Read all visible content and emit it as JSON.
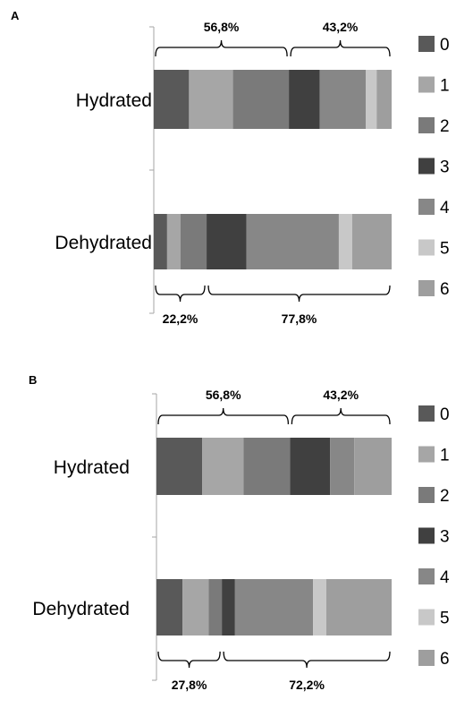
{
  "legend_colors": [
    "#595959",
    "#a6a6a6",
    "#7a7a7a",
    "#404040",
    "#878787",
    "#c8c8c8",
    "#9e9e9e"
  ],
  "chart_data": [
    {
      "panel_label": "A",
      "type": "bar",
      "orientation": "horizontal",
      "stacked": true,
      "normalized": true,
      "categories": [
        "Hydrated",
        "Dehydrated"
      ],
      "series": [
        {
          "name": "0",
          "values": [
            14.8,
            5.6
          ]
        },
        {
          "name": "1",
          "values": [
            18.5,
            5.6
          ]
        },
        {
          "name": "2",
          "values": [
            23.5,
            11.0
          ]
        },
        {
          "name": "3",
          "values": [
            13.0,
            16.7
          ]
        },
        {
          "name": "4",
          "values": [
            19.3,
            38.9
          ]
        },
        {
          "name": "5",
          "values": [
            4.6,
            5.6
          ]
        },
        {
          "name": "6",
          "values": [
            6.3,
            16.6
          ]
        }
      ],
      "annotations": [
        {
          "category": "Hydrated",
          "position": "top",
          "from": 0,
          "to": 56.8,
          "label": "56,8%"
        },
        {
          "category": "Hydrated",
          "position": "top",
          "from": 56.8,
          "to": 100,
          "label": "43,2%"
        },
        {
          "category": "Dehydrated",
          "position": "bottom",
          "from": 0,
          "to": 22.2,
          "label": "22,2%"
        },
        {
          "category": "Dehydrated",
          "position": "bottom",
          "from": 22.2,
          "to": 100,
          "label": "77,8%"
        }
      ],
      "legend": {
        "position": "right",
        "entries": [
          "0",
          "1",
          "2",
          "3",
          "4",
          "5",
          "6"
        ]
      }
    },
    {
      "panel_label": "B",
      "type": "bar",
      "orientation": "horizontal",
      "stacked": true,
      "normalized": true,
      "categories": [
        "Hydrated",
        "Dehydrated"
      ],
      "series": [
        {
          "name": "0",
          "values": [
            19.4,
            11.1
          ]
        },
        {
          "name": "1",
          "values": [
            17.6,
            11.1
          ]
        },
        {
          "name": "2",
          "values": [
            19.8,
            5.6
          ]
        },
        {
          "name": "3",
          "values": [
            17.0,
            5.6
          ]
        },
        {
          "name": "4",
          "values": [
            10.3,
            33.2
          ]
        },
        {
          "name": "5",
          "values": [
            0,
            5.6
          ]
        },
        {
          "name": "6",
          "values": [
            15.9,
            27.8
          ]
        }
      ],
      "annotations": [
        {
          "category": "Hydrated",
          "position": "top",
          "from": 0,
          "to": 56.8,
          "label": "56,8%"
        },
        {
          "category": "Hydrated",
          "position": "top",
          "from": 56.8,
          "to": 100,
          "label": "43,2%"
        },
        {
          "category": "Dehydrated",
          "position": "bottom",
          "from": 0,
          "to": 27.8,
          "label": "27,8%"
        },
        {
          "category": "Dehydrated",
          "position": "bottom",
          "from": 27.8,
          "to": 100,
          "label": "72,2%"
        }
      ],
      "legend": {
        "position": "right",
        "entries": [
          "0",
          "1",
          "2",
          "3",
          "4",
          "5",
          "6"
        ]
      }
    }
  ]
}
